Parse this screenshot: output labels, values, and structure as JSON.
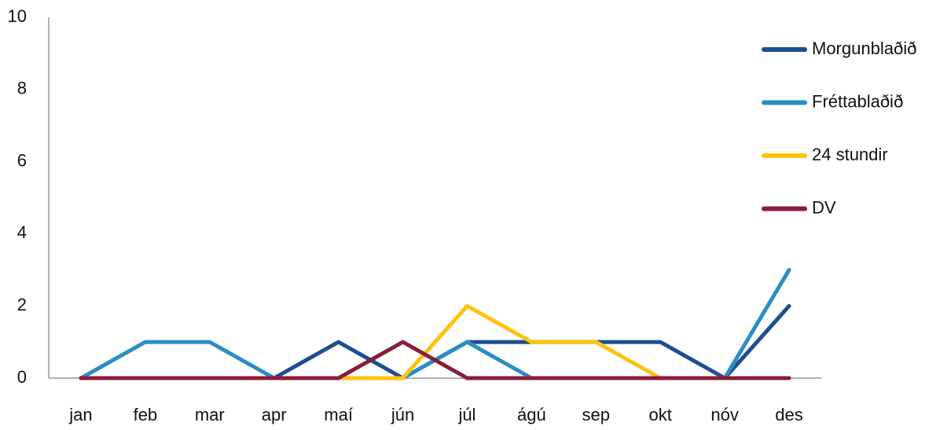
{
  "chart_data": {
    "type": "line",
    "categories": [
      "jan",
      "feb",
      "mar",
      "apr",
      "maí",
      "jún",
      "júl",
      "ágú",
      "sep",
      "okt",
      "nóv",
      "des"
    ],
    "series": [
      {
        "name": "Morgunblaðið",
        "color": "#1b4f91",
        "values": [
          0,
          0,
          0,
          0,
          1,
          0,
          1,
          1,
          1,
          1,
          0,
          2
        ]
      },
      {
        "name": "Fréttablaðið",
        "color": "#2a8dc5",
        "values": [
          0,
          1,
          1,
          0,
          0,
          0,
          1,
          0,
          0,
          0,
          0,
          3
        ]
      },
      {
        "name": "24 stundir",
        "color": "#ffc20e",
        "values": [
          0,
          0,
          0,
          0,
          0,
          0,
          2,
          1,
          1,
          0,
          0,
          0
        ]
      },
      {
        "name": "DV",
        "color": "#8c1c3c",
        "values": [
          0,
          0,
          0,
          0,
          0,
          1,
          0,
          0,
          0,
          0,
          0,
          0
        ]
      }
    ],
    "ylim": [
      0,
      10
    ],
    "yticks": [
      0,
      2,
      4,
      6,
      8,
      10
    ],
    "grid": false,
    "legend": "right"
  }
}
